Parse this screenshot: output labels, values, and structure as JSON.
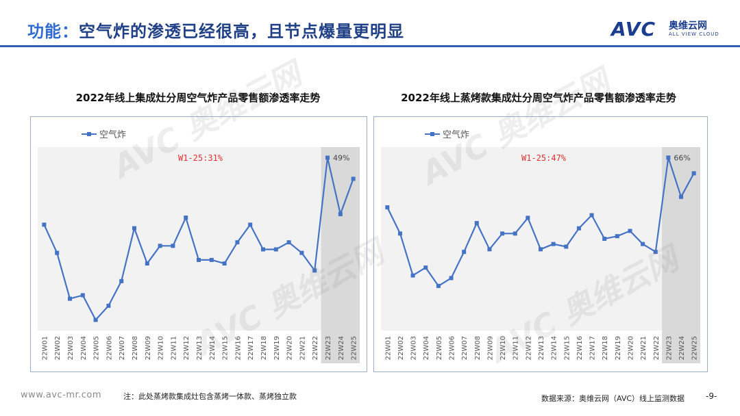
{
  "header": {
    "prefix": "功能：",
    "title": "空气炸的渗透已经很高，且节点爆量更明显"
  },
  "logo": {
    "brand": "AVC",
    "name_cn": "奥维云网",
    "name_en": "ALL VIEW CLOUD"
  },
  "watermark": {
    "text": "AVC 奥维云网"
  },
  "chart_data": [
    {
      "type": "line",
      "title": "2022年线上集成灶分周空气炸产品零售额渗透率走势",
      "legend": "空气炸",
      "legend_position": "top-left",
      "annotation": "W1-25:31%",
      "highlight_label": "49%",
      "highlight_range": [
        "22W23",
        "22W25"
      ],
      "categories": [
        "22W01",
        "22W02",
        "22W03",
        "22W04",
        "22W05",
        "22W06",
        "22W07",
        "22W08",
        "22W09",
        "22W10",
        "22W11",
        "22W12",
        "22W13",
        "22W14",
        "22W15",
        "22W16",
        "22W17",
        "22W18",
        "22W19",
        "22W20",
        "22W21",
        "22W22",
        "22W23",
        "22W24",
        "22W25"
      ],
      "series": [
        {
          "name": "空气炸",
          "values": [
            30,
            22,
            9,
            10,
            3,
            7,
            14,
            29,
            19,
            24,
            24,
            32,
            20,
            20,
            19,
            25,
            30,
            23,
            23,
            25,
            22,
            17,
            49,
            33,
            43
          ]
        }
      ],
      "ylim": [
        0,
        52
      ],
      "color": "#4472c4",
      "highlight_color": "#d9d9d9"
    },
    {
      "type": "line",
      "title": "2022年线上蒸烤款集成灶分周空气炸产品零售额渗透率走势",
      "legend": "空气炸",
      "legend_position": "top-left",
      "annotation": "W1-25:47%",
      "highlight_label": "66%",
      "highlight_range": [
        "22W23",
        "22W25"
      ],
      "categories": [
        "22W01",
        "22W02",
        "22W03",
        "22W04",
        "22W05",
        "22W06",
        "22W07",
        "22W08",
        "22W09",
        "22W10",
        "22W11",
        "22W12",
        "22W13",
        "22W14",
        "22W15",
        "22W16",
        "22W17",
        "22W18",
        "22W19",
        "22W20",
        "22W21",
        "22W22",
        "22W23",
        "22W24",
        "22W25"
      ],
      "series": [
        {
          "name": "空气炸",
          "values": [
            47,
            37,
            21,
            24,
            17,
            20,
            30,
            41,
            31,
            37,
            37,
            43,
            31,
            33,
            32,
            39,
            44,
            35,
            36,
            38,
            33,
            30,
            66,
            51,
            60
          ]
        }
      ],
      "ylim": [
        0,
        70
      ],
      "color": "#4472c4",
      "highlight_color": "#d9d9d9"
    }
  ],
  "footer": {
    "url": "www.avc-mr.com",
    "note": "注：此处蒸烤款集成灶包含蒸烤一体款、蒸烤独立款",
    "source": "数据来源：奥维云网（AVC）线上监测数据",
    "page": "-9-"
  }
}
